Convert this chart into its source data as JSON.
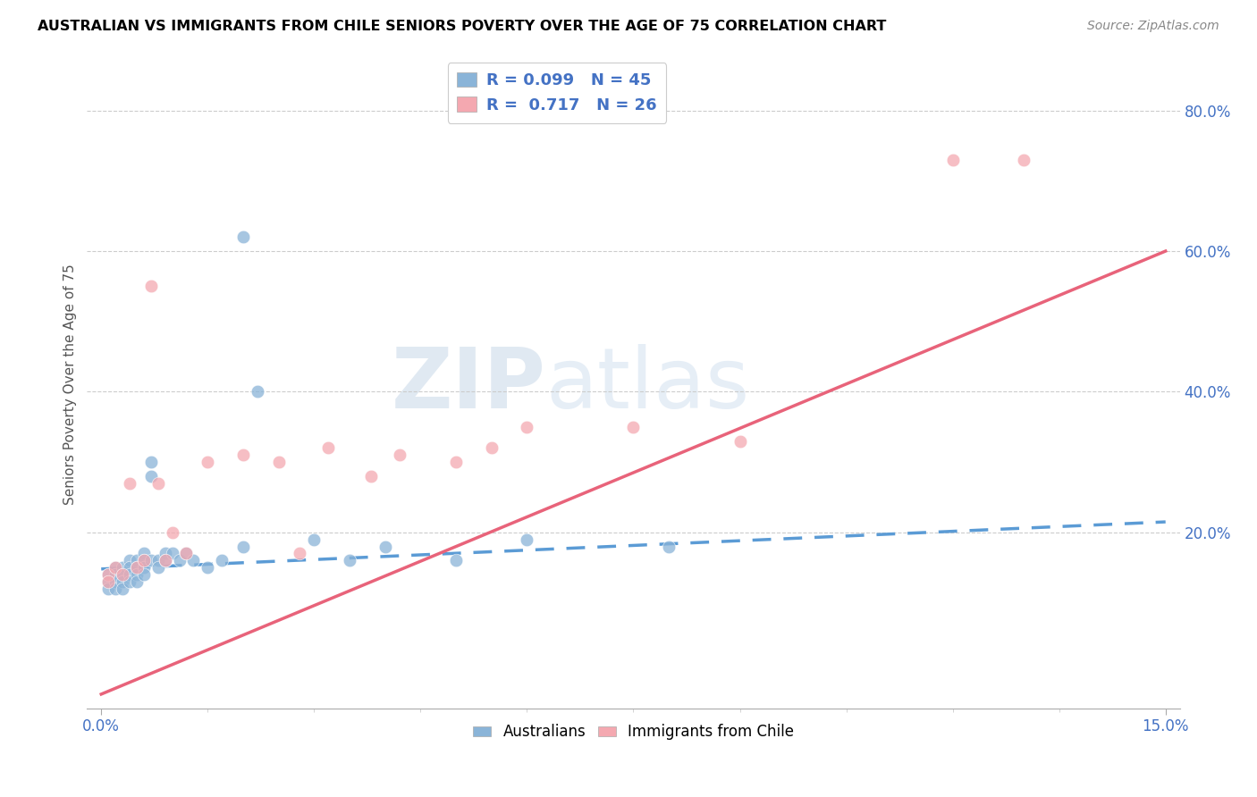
{
  "title": "AUSTRALIAN VS IMMIGRANTS FROM CHILE SENIORS POVERTY OVER THE AGE OF 75 CORRELATION CHART",
  "source": "Source: ZipAtlas.com",
  "ylabel": "Seniors Poverty Over the Age of 75",
  "xlim": [
    -0.002,
    0.152
  ],
  "ylim": [
    -0.05,
    0.87
  ],
  "xtick_positions": [
    0.0,
    0.15
  ],
  "xtick_labels": [
    "0.0%",
    "15.0%"
  ],
  "ytick_positions": [
    0.2,
    0.4,
    0.6,
    0.8
  ],
  "ytick_labels": [
    "20.0%",
    "40.0%",
    "60.0%",
    "80.0%"
  ],
  "australian_color": "#8ab4d8",
  "chile_color": "#f4a8b0",
  "australian_line_color": "#5b9bd5",
  "chile_line_color": "#e8637a",
  "australian_R": 0.099,
  "australian_N": 45,
  "chile_R": 0.717,
  "chile_N": 26,
  "aus_scatter_x": [
    0.001,
    0.001,
    0.001,
    0.002,
    0.002,
    0.002,
    0.002,
    0.003,
    0.003,
    0.003,
    0.003,
    0.004,
    0.004,
    0.004,
    0.004,
    0.005,
    0.005,
    0.005,
    0.005,
    0.006,
    0.006,
    0.006,
    0.006,
    0.007,
    0.007,
    0.007,
    0.008,
    0.008,
    0.009,
    0.009,
    0.01,
    0.011,
    0.012,
    0.013,
    0.015,
    0.017,
    0.02,
    0.022,
    0.03,
    0.035,
    0.04,
    0.05,
    0.06,
    0.08,
    0.02
  ],
  "aus_scatter_y": [
    0.14,
    0.13,
    0.12,
    0.15,
    0.14,
    0.13,
    0.12,
    0.15,
    0.14,
    0.13,
    0.12,
    0.16,
    0.15,
    0.14,
    0.13,
    0.16,
    0.15,
    0.14,
    0.13,
    0.17,
    0.16,
    0.15,
    0.14,
    0.3,
    0.28,
    0.16,
    0.16,
    0.15,
    0.17,
    0.16,
    0.17,
    0.16,
    0.17,
    0.16,
    0.15,
    0.16,
    0.18,
    0.4,
    0.19,
    0.16,
    0.18,
    0.16,
    0.19,
    0.18,
    0.62
  ],
  "chile_scatter_x": [
    0.001,
    0.001,
    0.002,
    0.003,
    0.004,
    0.005,
    0.006,
    0.007,
    0.008,
    0.009,
    0.01,
    0.012,
    0.015,
    0.02,
    0.025,
    0.028,
    0.032,
    0.038,
    0.042,
    0.05,
    0.055,
    0.06,
    0.075,
    0.09,
    0.12,
    0.13
  ],
  "chile_scatter_y": [
    0.14,
    0.13,
    0.15,
    0.14,
    0.27,
    0.15,
    0.16,
    0.55,
    0.27,
    0.16,
    0.2,
    0.17,
    0.3,
    0.31,
    0.3,
    0.17,
    0.32,
    0.28,
    0.31,
    0.3,
    0.32,
    0.35,
    0.35,
    0.33,
    0.73,
    0.73
  ],
  "aus_trend_x": [
    0.0,
    0.15
  ],
  "aus_trend_y": [
    0.148,
    0.215
  ],
  "chile_trend_x": [
    0.0,
    0.15
  ],
  "chile_trend_y": [
    -0.03,
    0.6
  ]
}
